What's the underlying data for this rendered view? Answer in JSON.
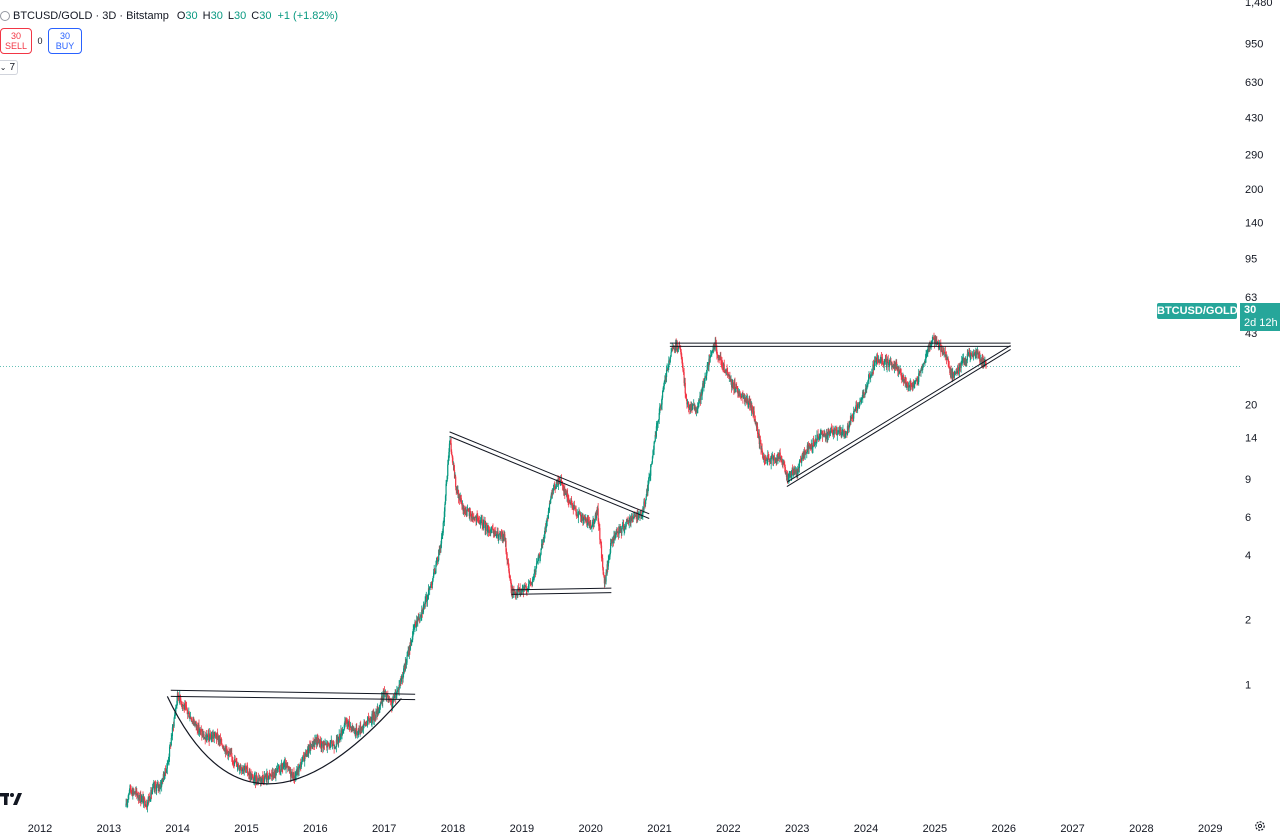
{
  "legend": {
    "symbol": "BTCUSD/GOLD · 3D · Bitstamp",
    "open_key": "O",
    "open_val": "30",
    "high_key": "H",
    "high_val": "30",
    "low_key": "L",
    "low_val": "30",
    "close_key": "C",
    "close_val": "30",
    "change": "+1 (+1.82%)"
  },
  "trade": {
    "sell_price": "30",
    "sell_label": "SELL",
    "spread": "0",
    "buy_price": "30",
    "buy_label": "BUY"
  },
  "indicator_toggle": {
    "count": "7",
    "icon": "chevron-down-icon"
  },
  "price_tag": {
    "symbol": "BTCUSD/GOLD",
    "last": "30",
    "countdown": "2d 12h"
  },
  "colors": {
    "up": "#089981",
    "down": "#f23645",
    "tag": "#26a69a",
    "drawing": "#131722"
  },
  "chart_data": {
    "type": "candlestick",
    "y_scale": "log",
    "ylim": [
      0.25,
      1480
    ],
    "xlim": [
      2012,
      2029.2
    ],
    "x_ticks": [
      {
        "value": 2012,
        "label": "2012"
      },
      {
        "value": 2013,
        "label": "2013"
      },
      {
        "value": 2014,
        "label": "2014"
      },
      {
        "value": 2015,
        "label": "2015"
      },
      {
        "value": 2016,
        "label": "2016"
      },
      {
        "value": 2017,
        "label": "2017"
      },
      {
        "value": 2018,
        "label": "2018"
      },
      {
        "value": 2019,
        "label": "2019"
      },
      {
        "value": 2020,
        "label": "2020"
      },
      {
        "value": 2021,
        "label": "2021"
      },
      {
        "value": 2022,
        "label": "2022"
      },
      {
        "value": 2023,
        "label": "2023"
      },
      {
        "value": 2024,
        "label": "2024"
      },
      {
        "value": 2025,
        "label": "2025"
      },
      {
        "value": 2026,
        "label": "2026"
      },
      {
        "value": 2027,
        "label": "2027"
      },
      {
        "value": 2028,
        "label": "2028"
      },
      {
        "value": 2029,
        "label": "2029"
      }
    ],
    "y_ticks": [
      {
        "value": 1480,
        "label": "1,480"
      },
      {
        "value": 950,
        "label": "950"
      },
      {
        "value": 630,
        "label": "630"
      },
      {
        "value": 430,
        "label": "430"
      },
      {
        "value": 290,
        "label": "290"
      },
      {
        "value": 200,
        "label": "200"
      },
      {
        "value": 140,
        "label": "140"
      },
      {
        "value": 95,
        "label": "95"
      },
      {
        "value": 63,
        "label": "63"
      },
      {
        "value": 43,
        "label": "43"
      },
      {
        "value": 20,
        "label": "20"
      },
      {
        "value": 14,
        "label": "14"
      },
      {
        "value": 9,
        "label": "9"
      },
      {
        "value": 6,
        "label": "6"
      },
      {
        "value": 4,
        "label": "4"
      },
      {
        "value": 2,
        "label": "2"
      },
      {
        "value": 1,
        "label": "1"
      }
    ],
    "last_price": 30,
    "price_path": [
      [
        2013.25,
        0.27
      ],
      [
        2013.3,
        0.33
      ],
      [
        2013.45,
        0.3
      ],
      [
        2013.55,
        0.28
      ],
      [
        2013.65,
        0.33
      ],
      [
        2013.75,
        0.34
      ],
      [
        2013.85,
        0.42
      ],
      [
        2013.92,
        0.6
      ],
      [
        2014.0,
        0.9
      ],
      [
        2014.1,
        0.78
      ],
      [
        2014.25,
        0.66
      ],
      [
        2014.4,
        0.56
      ],
      [
        2014.55,
        0.58
      ],
      [
        2014.7,
        0.5
      ],
      [
        2014.85,
        0.43
      ],
      [
        2015.0,
        0.4
      ],
      [
        2015.1,
        0.36
      ],
      [
        2015.25,
        0.37
      ],
      [
        2015.4,
        0.38
      ],
      [
        2015.55,
        0.42
      ],
      [
        2015.7,
        0.37
      ],
      [
        2015.85,
        0.47
      ],
      [
        2016.0,
        0.55
      ],
      [
        2016.15,
        0.52
      ],
      [
        2016.3,
        0.53
      ],
      [
        2016.45,
        0.67
      ],
      [
        2016.6,
        0.6
      ],
      [
        2016.75,
        0.67
      ],
      [
        2016.9,
        0.74
      ],
      [
        2017.0,
        0.92
      ],
      [
        2017.1,
        0.8
      ],
      [
        2017.2,
        0.95
      ],
      [
        2017.3,
        1.2
      ],
      [
        2017.45,
        1.9
      ],
      [
        2017.6,
        2.4
      ],
      [
        2017.75,
        3.5
      ],
      [
        2017.85,
        5.0
      ],
      [
        2017.95,
        13.8
      ],
      [
        2018.05,
        8.0
      ],
      [
        2018.15,
        6.5
      ],
      [
        2018.3,
        6.0
      ],
      [
        2018.45,
        5.5
      ],
      [
        2018.6,
        5.0
      ],
      [
        2018.75,
        4.8
      ],
      [
        2018.85,
        2.7
      ],
      [
        2019.0,
        2.7
      ],
      [
        2019.15,
        3.0
      ],
      [
        2019.3,
        4.5
      ],
      [
        2019.45,
        8.0
      ],
      [
        2019.55,
        9.0
      ],
      [
        2019.7,
        7.0
      ],
      [
        2019.85,
        6.0
      ],
      [
        2020.0,
        5.5
      ],
      [
        2020.1,
        6.3
      ],
      [
        2020.2,
        2.9
      ],
      [
        2020.3,
        4.6
      ],
      [
        2020.45,
        5.3
      ],
      [
        2020.6,
        6.0
      ],
      [
        2020.75,
        6.2
      ],
      [
        2020.85,
        9.0
      ],
      [
        2020.95,
        15.0
      ],
      [
        2021.1,
        28.0
      ],
      [
        2021.2,
        37.0
      ],
      [
        2021.3,
        36.0
      ],
      [
        2021.4,
        20.0
      ],
      [
        2021.55,
        19.0
      ],
      [
        2021.7,
        30.0
      ],
      [
        2021.8,
        38.0
      ],
      [
        2021.9,
        31.0
      ],
      [
        2022.05,
        25.0
      ],
      [
        2022.2,
        22.0
      ],
      [
        2022.35,
        19.0
      ],
      [
        2022.5,
        11.5
      ],
      [
        2022.6,
        11.0
      ],
      [
        2022.75,
        11.5
      ],
      [
        2022.85,
        9.3
      ],
      [
        2023.0,
        9.8
      ],
      [
        2023.1,
        12.0
      ],
      [
        2023.3,
        14.0
      ],
      [
        2023.5,
        15.0
      ],
      [
        2023.7,
        14.5
      ],
      [
        2023.85,
        19.0
      ],
      [
        2024.0,
        23.5
      ],
      [
        2024.15,
        33.0
      ],
      [
        2024.3,
        31.0
      ],
      [
        2024.45,
        30.0
      ],
      [
        2024.6,
        24.0
      ],
      [
        2024.75,
        26.0
      ],
      [
        2024.85,
        32.0
      ],
      [
        2024.95,
        40.0
      ],
      [
        2025.05,
        38.0
      ],
      [
        2025.15,
        34.0
      ],
      [
        2025.25,
        27.0
      ],
      [
        2025.35,
        30.0
      ],
      [
        2025.5,
        34.0
      ],
      [
        2025.6,
        35.0
      ],
      [
        2025.7,
        31.0
      ],
      [
        2025.75,
        30.0
      ]
    ],
    "annotations": [
      {
        "kind": "channel-line",
        "points": [
          [
            2013.9,
            0.94
          ],
          [
            2017.45,
            0.9
          ]
        ]
      },
      {
        "kind": "channel-line",
        "points": [
          [
            2013.9,
            0.88
          ],
          [
            2017.45,
            0.85
          ]
        ]
      },
      {
        "kind": "cup-curve",
        "points": [
          [
            2013.85,
            0.88
          ],
          [
            2015.3,
            0.345
          ],
          [
            2017.25,
            0.86
          ]
        ]
      },
      {
        "kind": "channel-line",
        "points": [
          [
            2017.95,
            14.9
          ],
          [
            2020.85,
            6.2
          ]
        ]
      },
      {
        "kind": "channel-line",
        "points": [
          [
            2017.95,
            14.2
          ],
          [
            2020.85,
            5.9
          ]
        ]
      },
      {
        "kind": "channel-line",
        "points": [
          [
            2018.85,
            2.75
          ],
          [
            2020.3,
            2.8
          ]
        ]
      },
      {
        "kind": "channel-line",
        "points": [
          [
            2018.85,
            2.62
          ],
          [
            2020.3,
            2.67
          ]
        ]
      },
      {
        "kind": "channel-line",
        "points": [
          [
            2021.15,
            38.5
          ],
          [
            2026.1,
            38.5
          ]
        ]
      },
      {
        "kind": "channel-line",
        "points": [
          [
            2021.15,
            37.2
          ],
          [
            2026.1,
            37.2
          ]
        ]
      },
      {
        "kind": "channel-line",
        "points": [
          [
            2022.85,
            8.7
          ],
          [
            2026.1,
            37.5
          ]
        ]
      },
      {
        "kind": "channel-line",
        "points": [
          [
            2022.85,
            8.3
          ],
          [
            2026.1,
            36.0
          ]
        ]
      }
    ]
  }
}
